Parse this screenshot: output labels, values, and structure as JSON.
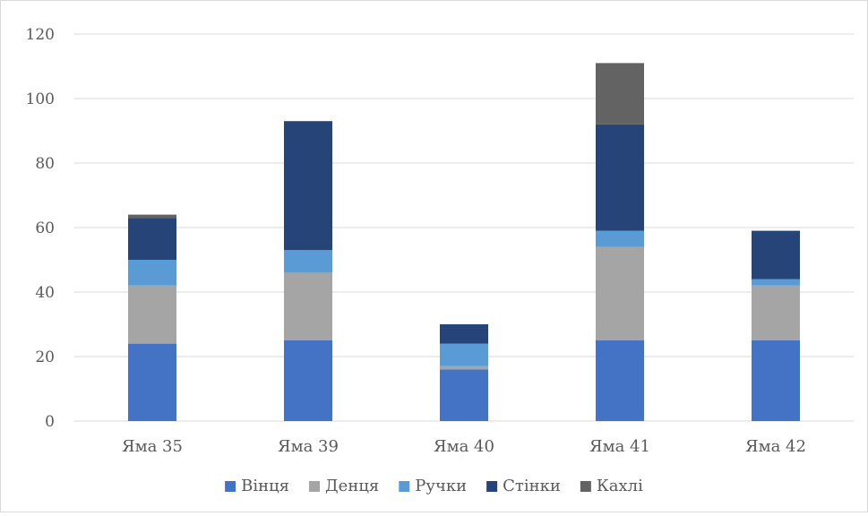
{
  "chart_data": {
    "type": "bar",
    "stacked": true,
    "categories": [
      "Яма 35",
      "Яма 39",
      "Яма 40",
      "Яма 41",
      "Яма 42"
    ],
    "series": [
      {
        "name": "Вінця",
        "color": "#4472c4",
        "values": [
          24,
          25,
          16,
          25,
          25
        ]
      },
      {
        "name": "Денця",
        "color": "#a5a5a5",
        "values": [
          18,
          21,
          1,
          29,
          17
        ]
      },
      {
        "name": "Ручки",
        "color": "#5b9bd5",
        "values": [
          8,
          7,
          7,
          5,
          2
        ]
      },
      {
        "name": "Стінки",
        "color": "#264478",
        "values": [
          13,
          40,
          6,
          33,
          15
        ]
      },
      {
        "name": "Кахлі",
        "color": "#636363",
        "values": [
          1,
          0,
          0,
          19,
          0
        ]
      }
    ],
    "ylim": [
      0,
      120
    ],
    "yticks": [
      0,
      20,
      40,
      60,
      80,
      100,
      120
    ],
    "grid": true,
    "legend": "bottom"
  }
}
